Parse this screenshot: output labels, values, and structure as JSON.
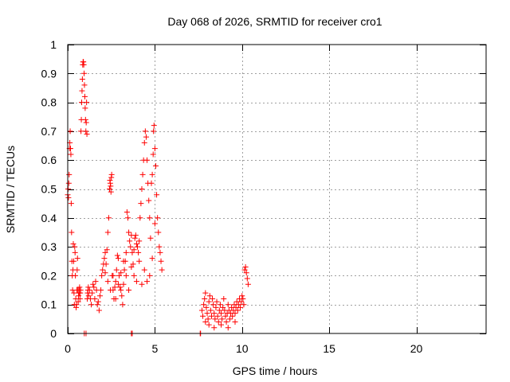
{
  "chart_data": {
    "type": "scatter",
    "title": "Day 068 of 2026, SRMTID for receiver cro1",
    "xlabel": "GPS time / hours",
    "ylabel": "SRMTID / TECUs",
    "xlim": [
      0,
      24
    ],
    "ylim": [
      0,
      1
    ],
    "xticks": [
      0,
      5,
      10,
      15,
      20
    ],
    "xtick_labels": [
      "0",
      "5",
      "10",
      "15",
      "20"
    ],
    "yticks": [
      0,
      0.1,
      0.2,
      0.3,
      0.4,
      0.5,
      0.6,
      0.7,
      0.8,
      0.9,
      1
    ],
    "ytick_labels": [
      "0",
      "0.1",
      "0.2",
      "0.3",
      "0.4",
      "0.5",
      "0.6",
      "0.7",
      "0.8",
      "0.9",
      "1"
    ],
    "grid": true,
    "marker": "+",
    "series": [
      {
        "name": "cro1",
        "color": "#ff0000",
        "points": [
          [
            0.0,
            0.48
          ],
          [
            0.02,
            0.5
          ],
          [
            0.04,
            0.47
          ],
          [
            0.06,
            0.52
          ],
          [
            0.08,
            0.55
          ],
          [
            0.1,
            0.64
          ],
          [
            0.12,
            0.66
          ],
          [
            0.14,
            0.7
          ],
          [
            0.16,
            0.64
          ],
          [
            0.18,
            0.62
          ],
          [
            0.2,
            0.45
          ],
          [
            0.22,
            0.35
          ],
          [
            0.24,
            0.25
          ],
          [
            0.26,
            0.2
          ],
          [
            0.28,
            0.15
          ],
          [
            0.3,
            0.22
          ],
          [
            0.32,
            0.31
          ],
          [
            0.34,
            0.25
          ],
          [
            0.36,
            0.14
          ],
          [
            0.38,
            0.1
          ],
          [
            0.4,
            0.3
          ],
          [
            0.42,
            0.28
          ],
          [
            0.44,
            0.2
          ],
          [
            0.46,
            0.12
          ],
          [
            0.48,
            0.09
          ],
          [
            0.5,
            0.1
          ],
          [
            0.52,
            0.15
          ],
          [
            0.54,
            0.22
          ],
          [
            0.56,
            0.26
          ],
          [
            0.58,
            0.15
          ],
          [
            0.6,
            0.11
          ],
          [
            0.62,
            0.13
          ],
          [
            0.64,
            0.15
          ],
          [
            0.66,
            0.14
          ],
          [
            0.68,
            0.16
          ],
          [
            0.7,
            0.12
          ],
          [
            0.72,
            0.14
          ],
          [
            0.74,
            0.15
          ],
          [
            0.76,
            0.7
          ],
          [
            0.78,
            0.74
          ],
          [
            0.8,
            0.8
          ],
          [
            0.82,
            0.84
          ],
          [
            0.84,
            0.88
          ],
          [
            0.86,
            0.93
          ],
          [
            0.88,
            0.94
          ],
          [
            0.9,
            0.94
          ],
          [
            0.92,
            0.93
          ],
          [
            0.94,
            0.9
          ],
          [
            0.96,
            0.86
          ],
          [
            0.98,
            0.82
          ],
          [
            1.0,
            0.78
          ],
          [
            1.02,
            0.74
          ],
          [
            1.04,
            0.7
          ],
          [
            1.06,
            0.73
          ],
          [
            1.08,
            0.8
          ],
          [
            1.1,
            0.69
          ],
          [
            1.12,
            0.12
          ],
          [
            1.14,
            0.14
          ],
          [
            1.16,
            0.15
          ],
          [
            1.18,
            0.16
          ],
          [
            1.2,
            0.13
          ],
          [
            1.25,
            0.15
          ],
          [
            1.3,
            0.12
          ],
          [
            1.35,
            0.1
          ],
          [
            1.4,
            0.14
          ],
          [
            1.45,
            0.17
          ],
          [
            1.5,
            0.16
          ],
          [
            1.55,
            0.12
          ],
          [
            1.6,
            0.18
          ],
          [
            1.65,
            0.15
          ],
          [
            1.7,
            0.1
          ],
          [
            1.75,
            0.11
          ],
          [
            1.8,
            0.08
          ],
          [
            1.85,
            0.13
          ],
          [
            1.9,
            0.15
          ],
          [
            1.95,
            0.2
          ],
          [
            2.0,
            0.22
          ],
          [
            2.05,
            0.24
          ],
          [
            2.1,
            0.26
          ],
          [
            2.15,
            0.21
          ],
          [
            2.2,
            0.24
          ],
          [
            2.25,
            0.29
          ],
          [
            2.3,
            0.35
          ],
          [
            2.35,
            0.4
          ],
          [
            2.4,
            0.5
          ],
          [
            2.42,
            0.53
          ],
          [
            2.44,
            0.52
          ],
          [
            2.46,
            0.51
          ],
          [
            2.48,
            0.49
          ],
          [
            2.5,
            0.54
          ],
          [
            2.52,
            0.55
          ],
          [
            2.55,
            0.2
          ],
          [
            2.6,
            0.15
          ],
          [
            2.65,
            0.12
          ],
          [
            2.7,
            0.16
          ],
          [
            2.75,
            0.18
          ],
          [
            2.8,
            0.22
          ],
          [
            2.85,
            0.27
          ],
          [
            2.9,
            0.26
          ],
          [
            2.95,
            0.2
          ],
          [
            3.0,
            0.16
          ],
          [
            3.05,
            0.15
          ],
          [
            3.1,
            0.13
          ],
          [
            3.15,
            0.1
          ],
          [
            3.2,
            0.17
          ],
          [
            3.25,
            0.22
          ],
          [
            3.3,
            0.25
          ],
          [
            3.35,
            0.28
          ],
          [
            3.4,
            0.42
          ],
          [
            3.45,
            0.4
          ],
          [
            3.5,
            0.35
          ],
          [
            3.55,
            0.32
          ],
          [
            3.6,
            0.3
          ],
          [
            3.65,
            0.34
          ],
          [
            3.7,
            0.28
          ],
          [
            3.75,
            0.24
          ],
          [
            3.8,
            0.29
          ],
          [
            3.85,
            0.33
          ],
          [
            3.9,
            0.34
          ],
          [
            3.95,
            0.31
          ],
          [
            4.0,
            0.3
          ],
          [
            4.05,
            0.28
          ],
          [
            4.1,
            0.32
          ],
          [
            4.15,
            0.4
          ],
          [
            4.2,
            0.45
          ],
          [
            4.25,
            0.5
          ],
          [
            4.3,
            0.55
          ],
          [
            4.35,
            0.6
          ],
          [
            4.4,
            0.66
          ],
          [
            4.45,
            0.7
          ],
          [
            4.5,
            0.68
          ],
          [
            4.55,
            0.6
          ],
          [
            4.6,
            0.52
          ],
          [
            4.65,
            0.46
          ],
          [
            4.7,
            0.4
          ],
          [
            4.75,
            0.33
          ],
          [
            4.8,
            0.52
          ],
          [
            4.85,
            0.55
          ],
          [
            4.9,
            0.62
          ],
          [
            4.92,
            0.7
          ],
          [
            4.95,
            0.72
          ],
          [
            5.0,
            0.64
          ],
          [
            5.05,
            0.58
          ],
          [
            5.1,
            0.48
          ],
          [
            5.15,
            0.4
          ],
          [
            5.2,
            0.35
          ],
          [
            5.25,
            0.3
          ],
          [
            5.3,
            0.28
          ],
          [
            5.35,
            0.25
          ],
          [
            5.4,
            0.22
          ],
          [
            5.0,
            0.38
          ],
          [
            4.85,
            0.26
          ],
          [
            4.7,
            0.2
          ],
          [
            4.55,
            0.18
          ],
          [
            4.4,
            0.22
          ],
          [
            4.25,
            0.17
          ],
          [
            4.1,
            0.25
          ],
          [
            3.95,
            0.18
          ],
          [
            3.8,
            0.2
          ],
          [
            3.65,
            0.23
          ],
          [
            3.5,
            0.15
          ],
          [
            3.35,
            0.2
          ],
          [
            3.2,
            0.25
          ],
          [
            3.05,
            0.21
          ],
          [
            2.9,
            0.17
          ],
          [
            2.75,
            0.12
          ],
          [
            2.6,
            0.2
          ],
          [
            2.45,
            0.15
          ],
          [
            2.3,
            0.18
          ],
          [
            2.15,
            0.28
          ],
          [
            0.95,
            0.0
          ],
          [
            1.05,
            0.0
          ],
          [
            3.65,
            0.0
          ],
          [
            3.7,
            0.0
          ],
          [
            7.6,
            0.0
          ],
          [
            7.62,
            0.0
          ],
          [
            7.7,
            0.08
          ],
          [
            7.75,
            0.06
          ],
          [
            7.8,
            0.1
          ],
          [
            7.85,
            0.12
          ],
          [
            7.9,
            0.14
          ],
          [
            7.95,
            0.09
          ],
          [
            8.0,
            0.07
          ],
          [
            8.05,
            0.05
          ],
          [
            8.1,
            0.11
          ],
          [
            8.15,
            0.13
          ],
          [
            8.2,
            0.08
          ],
          [
            8.25,
            0.06
          ],
          [
            8.3,
            0.12
          ],
          [
            8.35,
            0.1
          ],
          [
            8.4,
            0.07
          ],
          [
            8.45,
            0.05
          ],
          [
            8.5,
            0.09
          ],
          [
            8.55,
            0.11
          ],
          [
            8.6,
            0.06
          ],
          [
            8.65,
            0.04
          ],
          [
            8.7,
            0.08
          ],
          [
            8.75,
            0.1
          ],
          [
            8.8,
            0.07
          ],
          [
            8.85,
            0.05
          ],
          [
            8.9,
            0.09
          ],
          [
            8.95,
            0.12
          ],
          [
            9.0,
            0.08
          ],
          [
            9.05,
            0.06
          ],
          [
            9.1,
            0.04
          ],
          [
            9.15,
            0.07
          ],
          [
            9.2,
            0.1
          ],
          [
            9.25,
            0.08
          ],
          [
            9.3,
            0.05
          ],
          [
            9.35,
            0.07
          ],
          [
            9.4,
            0.09
          ],
          [
            9.45,
            0.06
          ],
          [
            9.5,
            0.08
          ],
          [
            9.55,
            0.1
          ],
          [
            9.6,
            0.07
          ],
          [
            9.65,
            0.09
          ],
          [
            9.7,
            0.11
          ],
          [
            9.75,
            0.08
          ],
          [
            9.8,
            0.1
          ],
          [
            9.85,
            0.12
          ],
          [
            9.9,
            0.09
          ],
          [
            9.95,
            0.11
          ],
          [
            10.0,
            0.13
          ],
          [
            10.05,
            0.12
          ],
          [
            10.1,
            0.1
          ],
          [
            10.15,
            0.22
          ],
          [
            10.2,
            0.23
          ],
          [
            10.25,
            0.21
          ],
          [
            10.3,
            0.19
          ],
          [
            10.35,
            0.17
          ],
          [
            7.9,
            0.04
          ],
          [
            8.1,
            0.03
          ],
          [
            8.4,
            0.02
          ],
          [
            8.8,
            0.03
          ],
          [
            9.2,
            0.02
          ],
          [
            9.6,
            0.04
          ]
        ]
      }
    ]
  }
}
